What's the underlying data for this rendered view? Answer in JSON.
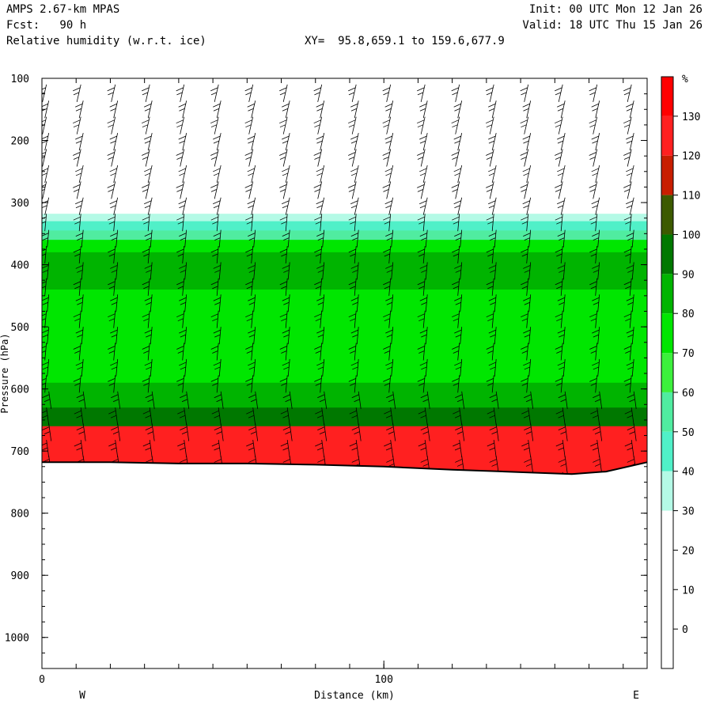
{
  "header": {
    "model": "AMPS 2.67-km MPAS",
    "fcst": "Fcst:   90 h",
    "field": "Relative humidity (w.r.t. ice)",
    "xy": "XY=  95.8,659.1 to 159.6,677.9",
    "init": "Init: 00 UTC Mon 12 Jan 26",
    "valid": "Valid: 18 UTC Thu 15 Jan 26"
  },
  "chart_data": {
    "type": "cross-section contour",
    "ylabel": "Pressure (hPa)",
    "xlabel": "Distance (km)",
    "yticks": [
      100,
      200,
      300,
      400,
      500,
      600,
      700,
      800,
      900,
      1000
    ],
    "ylim": [
      100,
      1050
    ],
    "xticks": [
      0,
      100
    ],
    "xlim": [
      0,
      177
    ],
    "x_end_labels": {
      "west": "W",
      "east": "E"
    },
    "colorbar": {
      "unit": "%",
      "labels": [
        130,
        120,
        110,
        100,
        90,
        80,
        70,
        60,
        50,
        40,
        30,
        20,
        10,
        0
      ],
      "bins": [
        {
          "from": 130,
          "to": 140,
          "color": "#ff0000"
        },
        {
          "from": 120,
          "to": 130,
          "color": "#ff2020"
        },
        {
          "from": 110,
          "to": 120,
          "color": "#c81e00"
        },
        {
          "from": 100,
          "to": 110,
          "color": "#3c5a00"
        },
        {
          "from": 90,
          "to": 100,
          "color": "#007800"
        },
        {
          "from": 80,
          "to": 90,
          "color": "#00b400"
        },
        {
          "from": 70,
          "to": 80,
          "color": "#00e600"
        },
        {
          "from": 60,
          "to": 70,
          "color": "#3cf03c"
        },
        {
          "from": 50,
          "to": 60,
          "color": "#50eca0"
        },
        {
          "from": 40,
          "to": 50,
          "color": "#50f0c8"
        },
        {
          "from": 30,
          "to": 40,
          "color": "#b4fae6"
        },
        {
          "from": 20,
          "to": 30,
          "color": "#ffffff"
        },
        {
          "from": 10,
          "to": 20,
          "color": "#ffffff"
        },
        {
          "from": 0,
          "to": 10,
          "color": "#ffffff"
        },
        {
          "from": -10,
          "to": 0,
          "color": "#ffffff"
        }
      ]
    },
    "terrain": {
      "x_km": [
        0,
        20,
        40,
        60,
        80,
        100,
        120,
        140,
        155,
        165,
        177
      ],
      "p_hPa": [
        718,
        718,
        720,
        720,
        722,
        725,
        730,
        734,
        737,
        733,
        718
      ]
    },
    "rh_bands_by_pressure_hPa": [
      {
        "top": 100,
        "bottom": 318,
        "value": 10
      },
      {
        "top": 318,
        "bottom": 330,
        "value": 35
      },
      {
        "top": 330,
        "bottom": 345,
        "value": 45
      },
      {
        "top": 345,
        "bottom": 360,
        "value": 55
      },
      {
        "top": 360,
        "bottom": 380,
        "value": 75
      },
      {
        "top": 380,
        "bottom": 440,
        "value": 85
      },
      {
        "top": 440,
        "bottom": 590,
        "value": 75
      },
      {
        "top": 590,
        "bottom": 630,
        "value": 85
      },
      {
        "top": 630,
        "bottom": 660,
        "value": 95
      },
      {
        "top": 660,
        "bottom": 737,
        "value": 125
      }
    ],
    "wind_barbs": "present throughout column"
  }
}
